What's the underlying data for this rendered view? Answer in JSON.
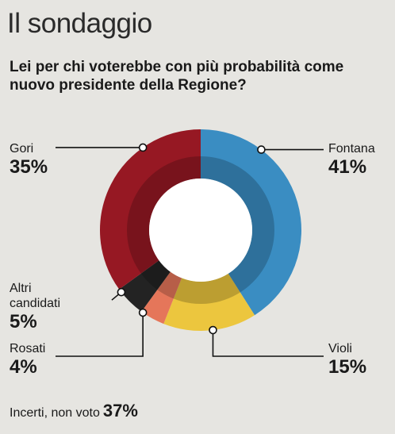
{
  "header": {
    "title": "Il sondaggio",
    "question": "Lei per chi voterebbe con più probabilità come nuovo presidente della Regione?"
  },
  "chart_data": {
    "type": "pie",
    "donut": true,
    "slices": [
      {
        "label": "Fontana",
        "lines": [
          "Fontana"
        ],
        "value": 41,
        "display": "41%",
        "color": "#3a8dc2"
      },
      {
        "label": "Violi",
        "lines": [
          "Violi"
        ],
        "value": 15,
        "display": "15%",
        "color": "#ecc63e"
      },
      {
        "label": "Rosati",
        "lines": [
          "Rosati"
        ],
        "value": 4,
        "display": "4%",
        "color": "#e5765a"
      },
      {
        "label": "Altri candidati",
        "lines": [
          "Altri",
          "candidati"
        ],
        "value": 5,
        "display": "5%",
        "color": "#232323"
      },
      {
        "label": "Gori",
        "lines": [
          "Gori"
        ],
        "value": 35,
        "display": "35%",
        "color": "#961823"
      }
    ]
  },
  "footer": {
    "text": "Incerti, non voto",
    "value": "37%"
  }
}
